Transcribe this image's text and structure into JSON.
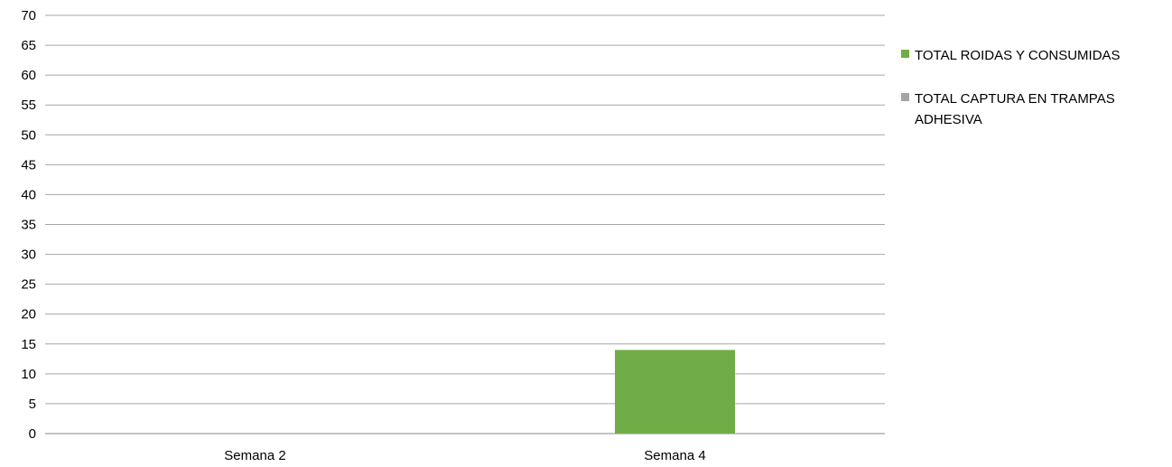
{
  "chart_data": {
    "type": "bar",
    "categories": [
      "Semana 2",
      "Semana 4"
    ],
    "series": [
      {
        "name": "TOTAL ROIDAS Y CONSUMIDAS",
        "values": [
          0,
          14
        ],
        "color": "#70AD47"
      },
      {
        "name": "TOTAL CAPTURA EN TRAMPAS ADHESIVA",
        "values": [
          0,
          0
        ],
        "color": "#A5A5A5"
      }
    ],
    "yticks": [
      "0",
      "5",
      "10",
      "15",
      "20",
      "25",
      "30",
      "35",
      "40",
      "45",
      "50",
      "55",
      "60",
      "65",
      "70"
    ],
    "ylim": [
      0,
      70
    ],
    "grid": true,
    "legend_position": "right"
  }
}
